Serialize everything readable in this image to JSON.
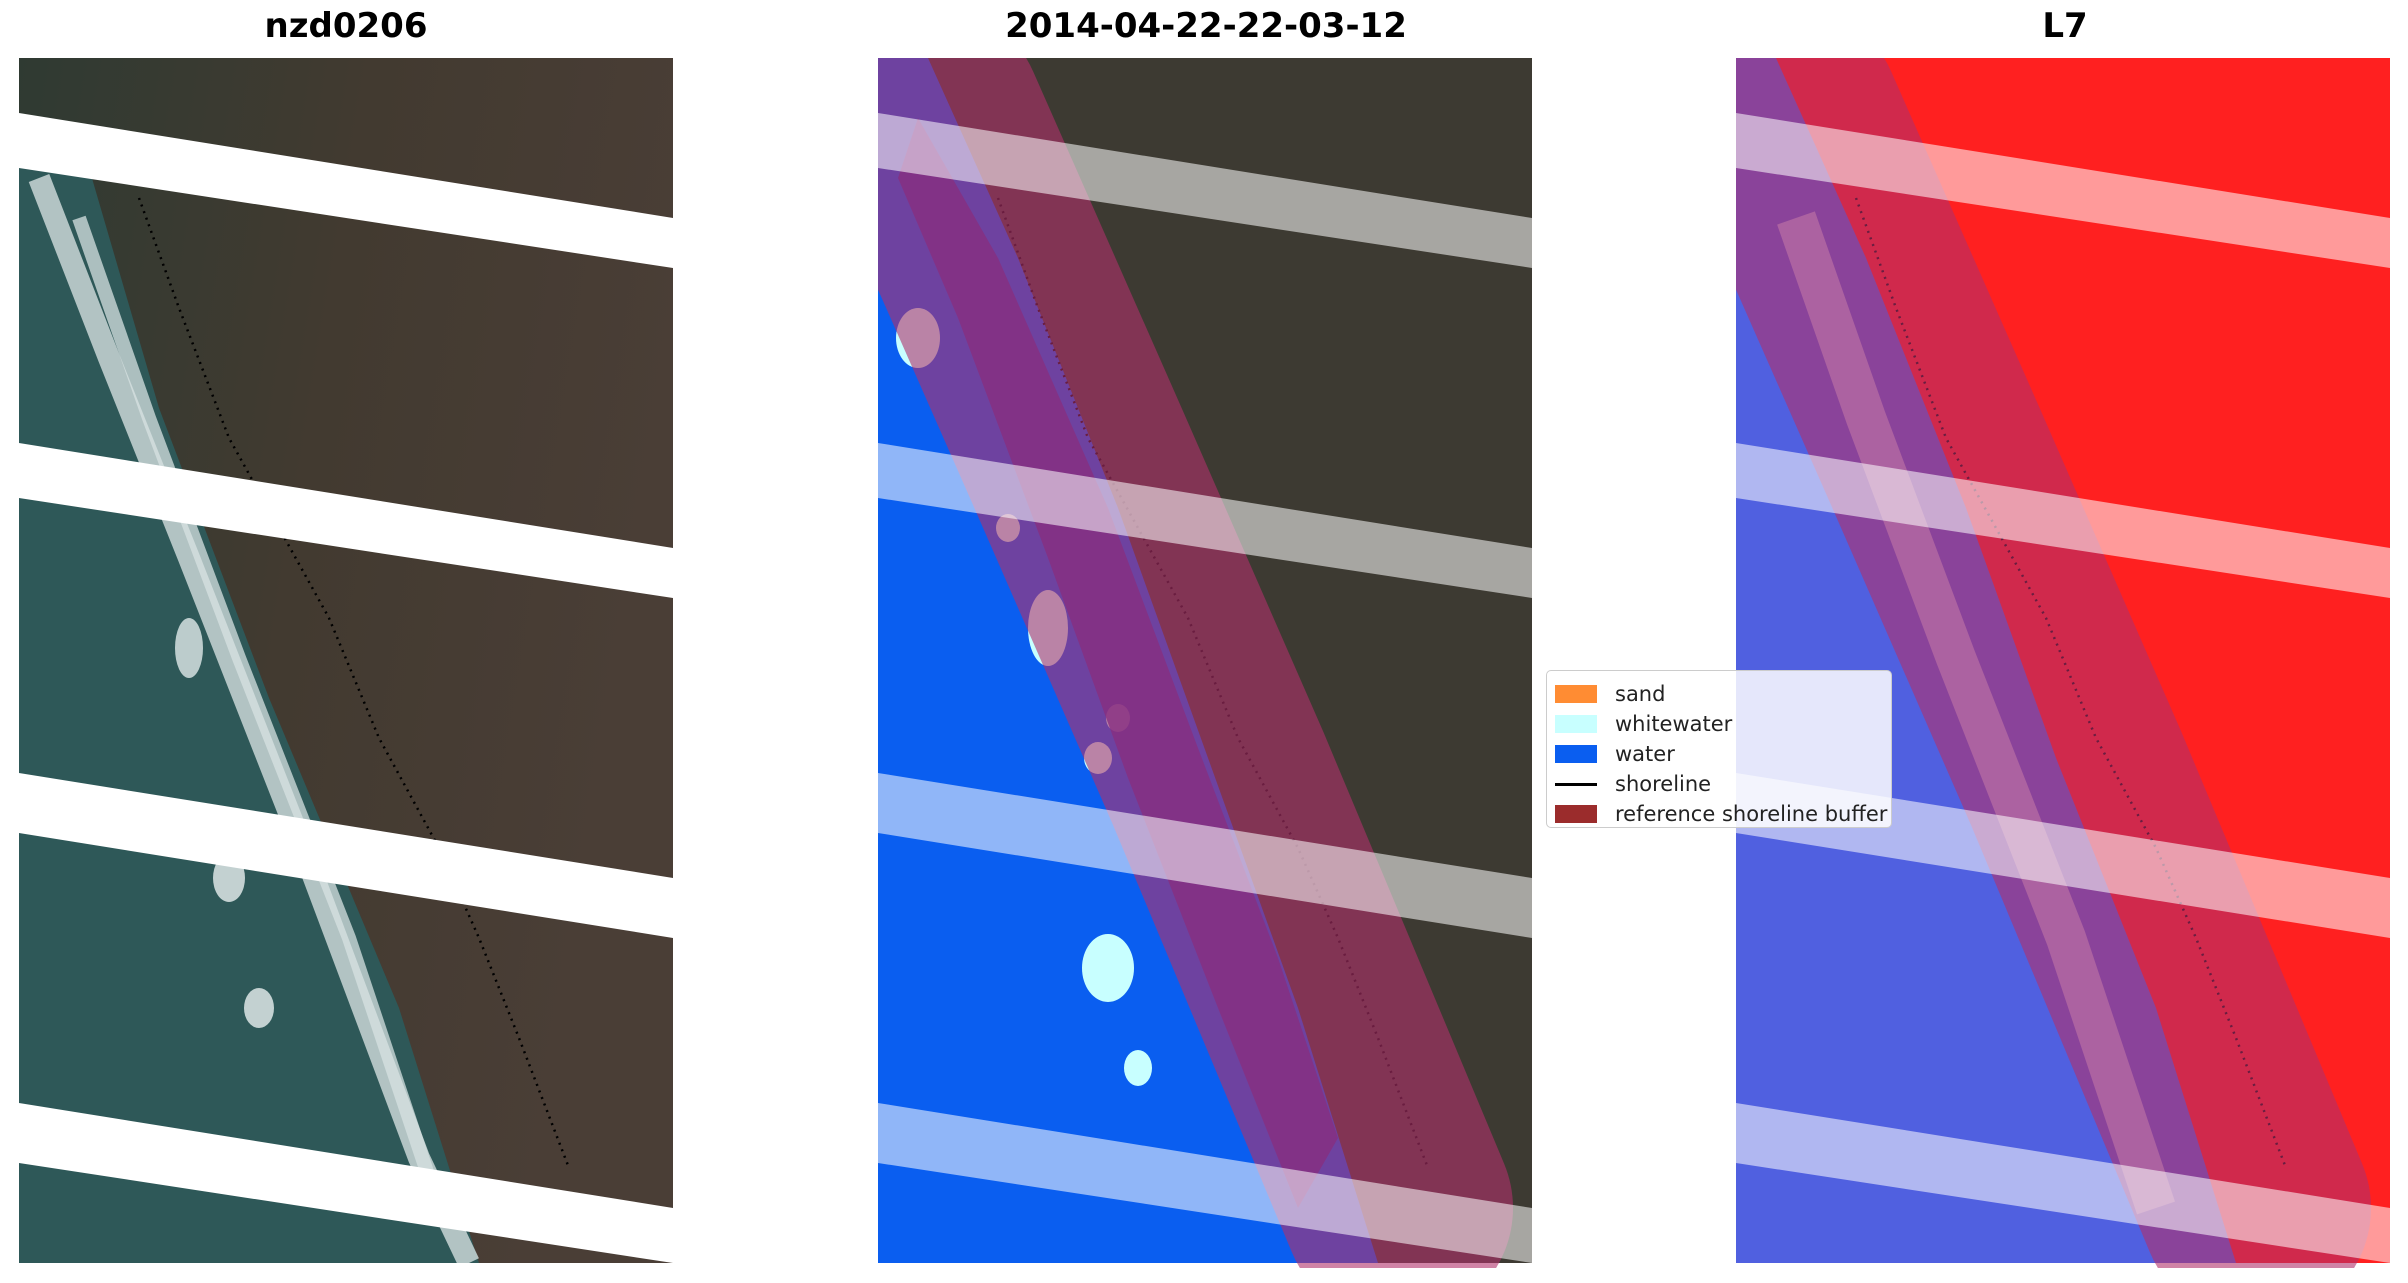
{
  "panels": [
    {
      "title": "nzd0206"
    },
    {
      "title": "2014-04-22-22-03-12"
    },
    {
      "title": "L7"
    }
  ],
  "legend": {
    "items": [
      {
        "label": "sand",
        "color": "#ff8c33",
        "kind": "patch"
      },
      {
        "label": "whitewater",
        "color": "#c8ffff",
        "kind": "patch"
      },
      {
        "label": "water",
        "color": "#0a5ef0",
        "kind": "patch"
      },
      {
        "label": "shoreline",
        "color": "#000000",
        "kind": "line"
      },
      {
        "label": "reference shoreline buffer",
        "color": "#9b2c2c",
        "kind": "patch"
      }
    ]
  },
  "colors": {
    "land_dark": "#3e3a33",
    "ocean": "#2d5a5a",
    "surf": "#dce6e6",
    "water_class": "#0a5ef0",
    "whitewater_class": "#c8ffff",
    "land_index": "#ff2020",
    "water_index": "#5060e0",
    "buffer": "#b0306a",
    "gap": "#ffffff"
  }
}
